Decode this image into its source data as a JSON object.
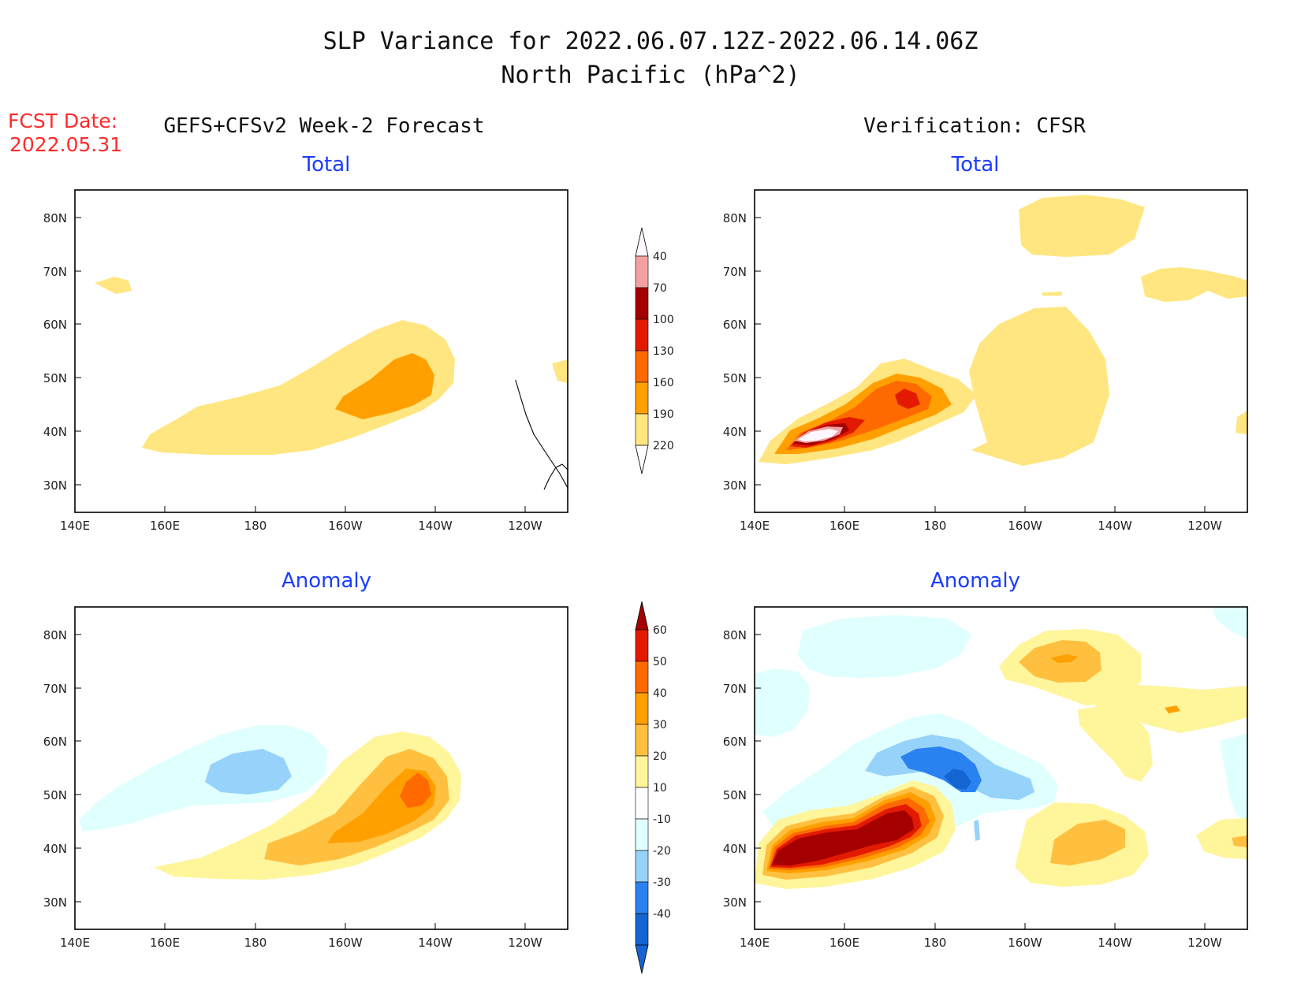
{
  "title_line1": "SLP Variance for 2022.06.07.12Z-2022.06.14.06Z",
  "title_line2": "North Pacific (hPa^2)",
  "fcst_label": "FCST Date:",
  "fcst_date": "2022.05.31",
  "left_header": "GEFS+CFSv2 Week-2 Forecast",
  "right_header": "Verification: CFSR",
  "panel_titles": {
    "total": "Total",
    "anomaly": "Anomaly"
  },
  "axes": {
    "lon_labels": [
      "140E",
      "160E",
      "180",
      "160W",
      "140W",
      "120W"
    ],
    "lat_labels": [
      "80N",
      "70N",
      "60N",
      "50N",
      "40N",
      "30N"
    ]
  },
  "colorbar_total": {
    "levels": [
      "40",
      "70",
      "100",
      "130",
      "160",
      "190",
      "220"
    ],
    "colors": [
      "#fff7ff",
      "#f2a0a0",
      "#a50000",
      "#e31a00",
      "#ff6a00",
      "#ffa000",
      "#ffe680"
    ]
  },
  "colorbar_anomaly": {
    "levels": [
      "60",
      "50",
      "40",
      "30",
      "20",
      "10",
      "-10",
      "-20",
      "-30",
      "-40"
    ],
    "colors": [
      "#a50000",
      "#e31a00",
      "#ff6a00",
      "#ffa000",
      "#ffc040",
      "#fff59a",
      "#ffffff",
      "#e0ffff",
      "#96d2fa",
      "#2a82f0",
      "#1464d2"
    ]
  }
}
